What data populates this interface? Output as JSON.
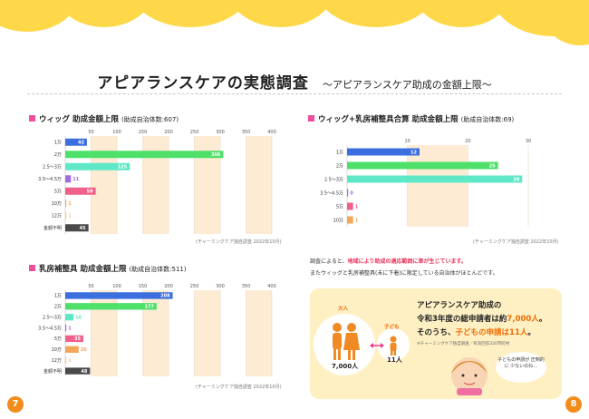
{
  "heading": {
    "title": "アピアランスケアの実態調査",
    "subtitle": "～アピアランスケア助成の金額上限～"
  },
  "colors": {
    "cloud": "#ffd84a",
    "band": "#fdebd3",
    "accent_pink": "#ee4f9c",
    "highlight_red": "#e8315a",
    "orange": "#ef6b00",
    "page_badge": "#f28c1a"
  },
  "chart_data": [
    {
      "type": "bar",
      "orientation": "horizontal",
      "title": "ウィッグ 助成金額上限",
      "note": "(助成自治体数:607)",
      "categories": [
        "1万",
        "2万",
        "2.5～3万",
        "3.5～4.5万",
        "5万",
        "10万",
        "12万",
        "金額不明"
      ],
      "values": [
        42,
        306,
        125,
        11,
        59,
        1,
        1,
        45
      ],
      "bar_colors": [
        "#3b6fe0",
        "#4fe06a",
        "#5fe8c8",
        "#a46ae0",
        "#f0608a",
        "#f3a65a",
        "#f5c98a",
        "#4a4a4a"
      ],
      "xticks": [
        50,
        100,
        150,
        200,
        250,
        300,
        350,
        400
      ],
      "xlim": [
        0,
        400
      ],
      "source": "(チャーミングケア独自調査 2022年10月)"
    },
    {
      "type": "bar",
      "orientation": "horizontal",
      "title": "ウィッグ+乳房補整具合算 助成金額上限",
      "note": "(助成自治体数:69)",
      "categories": [
        "1万",
        "2万",
        "2.5～3万",
        "3.5～4.5万",
        "5万",
        "10万"
      ],
      "values": [
        12,
        25,
        29,
        0,
        1,
        1
      ],
      "bar_colors": [
        "#3b6fe0",
        "#4fe06a",
        "#5fe8c8",
        "#a46ae0",
        "#f0608a",
        "#f3a65a"
      ],
      "xticks": [
        10,
        20,
        30
      ],
      "xlim": [
        0,
        30
      ],
      "source": "(チャーミングケア独自調査 2022年10月)"
    },
    {
      "type": "bar",
      "orientation": "horizontal",
      "title": "乳房補整具 助成金額上限",
      "note": "(助成自治体数:511)",
      "categories": [
        "1万",
        "2万",
        "2.5～3万",
        "3.5～4.5万",
        "5万",
        "10万",
        "12万",
        "金額不明"
      ],
      "values": [
        208,
        177,
        16,
        1,
        35,
        26,
        1,
        48
      ],
      "bar_colors": [
        "#3b6fe0",
        "#4fe06a",
        "#5fe8c8",
        "#a46ae0",
        "#f0608a",
        "#f3a65a",
        "#f5c98a",
        "#4a4a4a"
      ],
      "xticks": [
        50,
        100,
        150,
        200,
        250,
        300,
        350,
        400
      ],
      "xlim": [
        0,
        400
      ],
      "source": "(チャーミングケア独自調査 2022年10月)"
    }
  ],
  "survey": {
    "p1_a": "調査によると、",
    "p1_hl": "地域により助成の適応範囲に差が生じています。",
    "p2": "またウィッグと乳房補整具(未に下着)に限定している自治体がほとんどです。"
  },
  "info": {
    "line1": "アピアランスケア助成の",
    "line2a": "令和3年度の総申請者は約",
    "line2b": "7,000人",
    "line2c": "。",
    "line3a": "そのうち、",
    "line3b": "子どもの申請は",
    "line3c": "11人",
    "line3d": "。",
    "note": "※チャーミングケア独自調査／有効回答320市町村",
    "adult_label": "大人",
    "adult_count": "7,000人",
    "child_label": "子ども",
    "child_count": "11人",
    "bubble": "子どもの申請が 圧倒的に 少ないのね…"
  },
  "pages": {
    "left": "7",
    "right": "8"
  }
}
